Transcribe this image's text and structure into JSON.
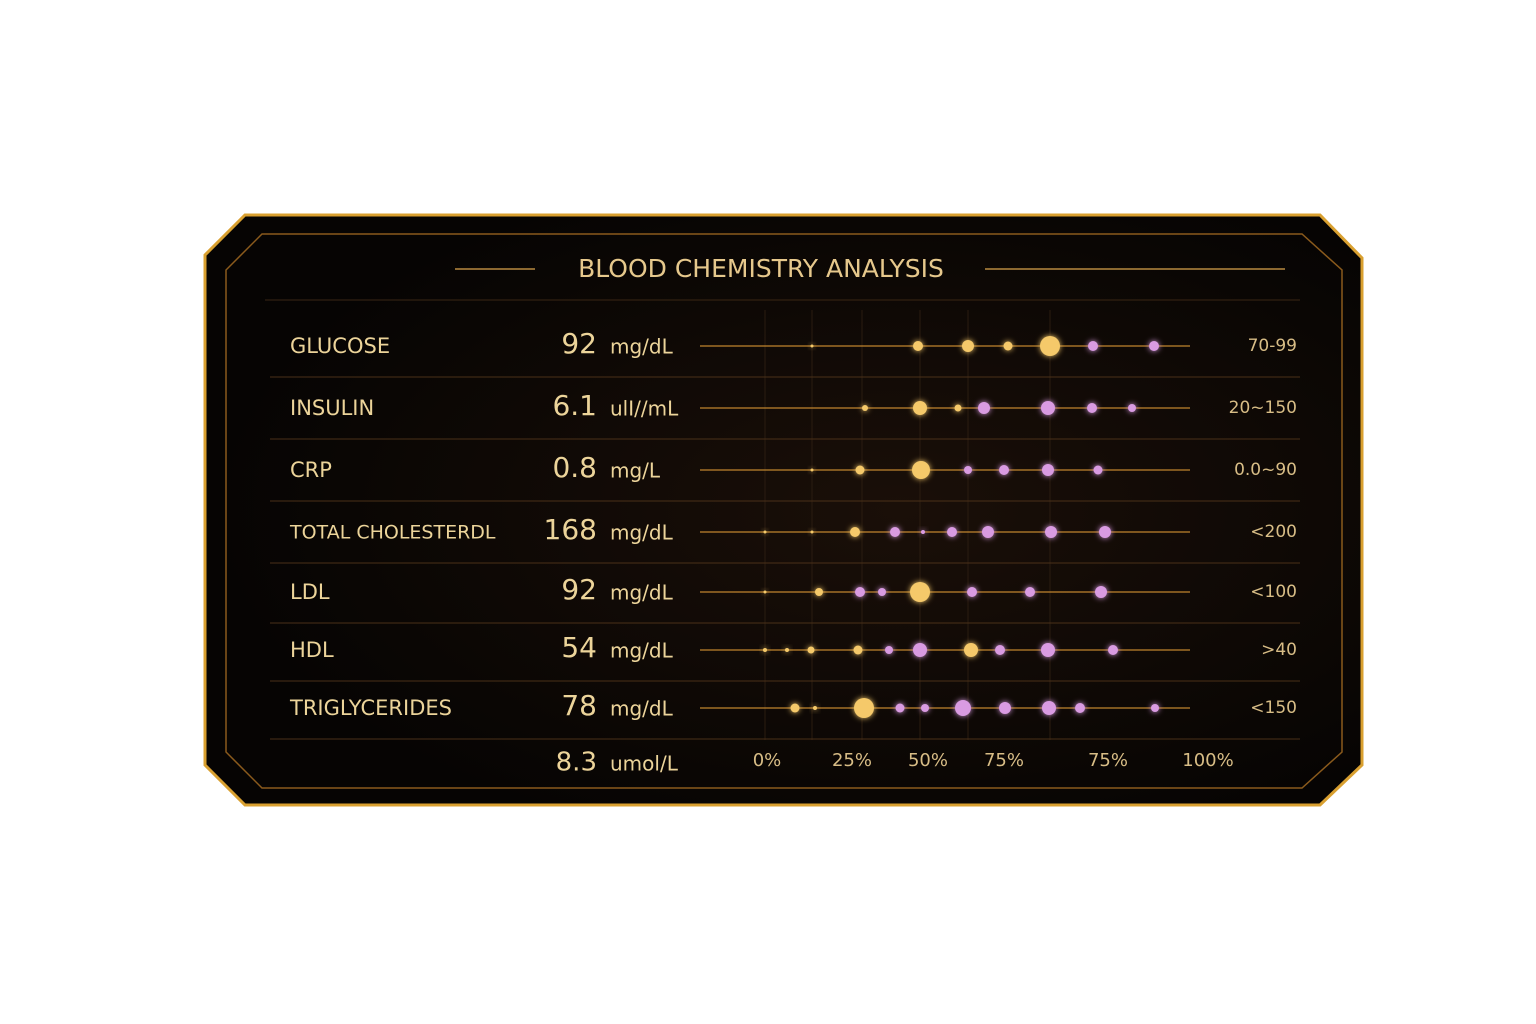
{
  "header": {
    "title": "BLOOD CHEMISTRY ANALYSIS"
  },
  "table": {
    "rows": [
      {
        "name": "GLUCOSE",
        "value": 92,
        "unit": "mg/dL",
        "range": "70-99"
      },
      {
        "name": "INSULIN",
        "value": 6.1,
        "unit": "ulI//mL",
        "range": "20~150"
      },
      {
        "name": "CRP",
        "value": 0.8,
        "unit": "mg/L",
        "range": "0.0~90"
      },
      {
        "name": "TOTAL CHOLESTERDL",
        "value": 168,
        "unit": "mg/dL",
        "range": "<200"
      },
      {
        "name": "LDL",
        "value": 92,
        "unit": "mg/dL",
        "range": "<100"
      },
      {
        "name": "HDL",
        "value": 54,
        "unit": "mg/dL",
        "range": ">40"
      },
      {
        "name": "TRIGLYCERIDES",
        "value": 78,
        "unit": "mg/dL",
        "range": "<150"
      }
    ],
    "footer": {
      "value": 8.3,
      "unit": "umol/L"
    },
    "scale": [
      "0%",
      "25%",
      "50%",
      "75%",
      "75%",
      "100%"
    ]
  }
}
